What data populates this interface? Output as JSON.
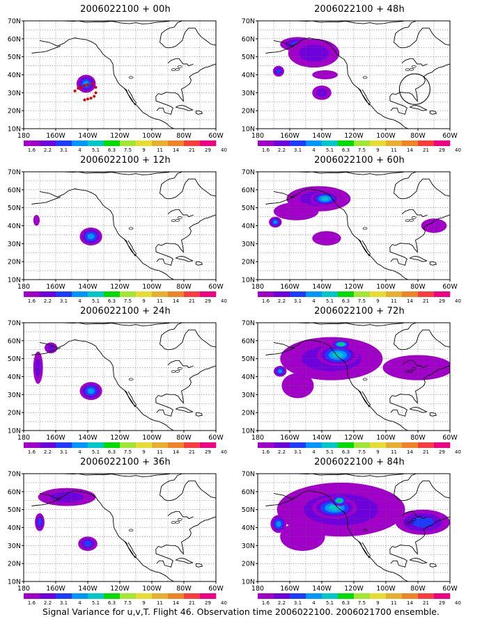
{
  "panels": [
    {
      "title": "2006022100 + 00h"
    },
    {
      "title": "2006022100 + 48h"
    },
    {
      "title": "2006022100 + 12h"
    },
    {
      "title": "2006022100 + 60h"
    },
    {
      "title": "2006022100 + 24h"
    },
    {
      "title": "2006022100 + 72h"
    },
    {
      "title": "2006022100 + 36h"
    },
    {
      "title": "2006022100 + 84h"
    }
  ],
  "axes": {
    "lon_labels": [
      "180",
      "160W",
      "140W",
      "120W",
      "100W",
      "80W",
      "60W"
    ],
    "lat_labels": [
      "10N",
      "20N",
      "30N",
      "40N",
      "50N",
      "60N",
      "70N"
    ]
  },
  "colorbar": {
    "labels": [
      "1.6",
      "2.2",
      "3.1",
      "4",
      "5.1",
      "6.3",
      "7.5",
      "9",
      "11",
      "14",
      "21",
      "29",
      "40"
    ],
    "colors": [
      "#a000c8",
      "#6e00dc",
      "#1e3cff",
      "#0096ff",
      "#00c8c8",
      "#00dc00",
      "#a0e632",
      "#e6dc32",
      "#e6af2d",
      "#f08228",
      "#fa3c3c",
      "#f00082"
    ]
  },
  "footer": "Signal Variance for u,v,T. Flight 46. Observation time 2006022100. 2006021700 ensemble."
}
